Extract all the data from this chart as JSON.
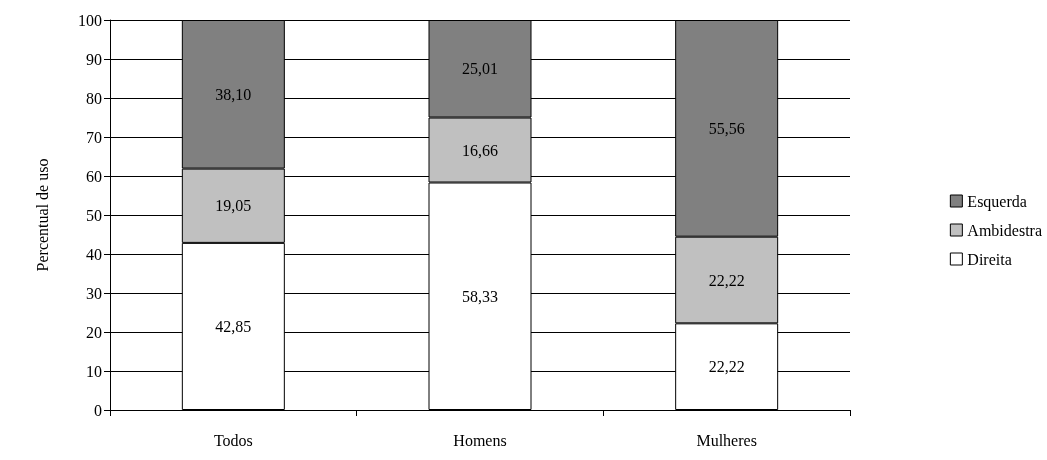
{
  "chart_data": {
    "type": "bar",
    "stacked": true,
    "ylabel": "Percentual de uso",
    "categories": [
      "Todos",
      "Homens",
      "Mulheres"
    ],
    "series": [
      {
        "name": "Direita",
        "color": "#ffffff",
        "values": [
          42.85,
          58.33,
          22.22
        ],
        "value_labels": [
          "42,85",
          "58,33",
          "22,22"
        ]
      },
      {
        "name": "Ambidestra",
        "color": "#c0c0c0",
        "values": [
          19.05,
          16.66,
          22.22
        ],
        "value_labels": [
          "19,05",
          "16,66",
          "22,22"
        ]
      },
      {
        "name": "Esquerda",
        "color": "#808080",
        "values": [
          38.1,
          25.01,
          55.56
        ],
        "value_labels": [
          "38,10",
          "25,01",
          "55,56"
        ]
      }
    ],
    "ylim": [
      0,
      100
    ],
    "yticks": [
      0,
      10,
      20,
      30,
      40,
      50,
      60,
      70,
      80,
      90,
      100
    ],
    "grid": "y",
    "legend": "right"
  }
}
